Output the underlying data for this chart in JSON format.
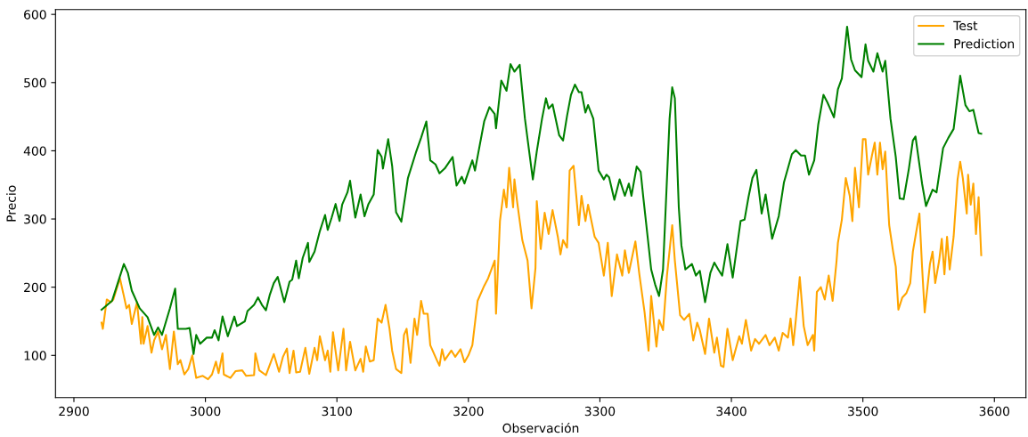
{
  "chart_data": {
    "type": "line",
    "xlabel": "Observación",
    "ylabel": "Precio",
    "xlim": [
      2886,
      3624
    ],
    "ylim": [
      38,
      607
    ],
    "xticks": [
      2900,
      3000,
      3100,
      3200,
      3300,
      3400,
      3500,
      3600
    ],
    "yticks": [
      100,
      200,
      300,
      400,
      500,
      600
    ],
    "grid": false,
    "legend": "top right",
    "line_style": "solid",
    "marker": "none",
    "series": [
      {
        "name": "Test",
        "color": "#ffa500",
        "x": [
          2921,
          2922,
          2923,
          2925,
          2928,
          2930,
          2935,
          2938,
          2940,
          2942,
          2944,
          2948,
          2951,
          2952,
          2953,
          2956,
          2959,
          2961,
          2964,
          2967,
          2970,
          2973,
          2976,
          2979,
          2981,
          2984,
          2987,
          2990,
          2993,
          2998,
          3002,
          3005,
          3008,
          3010,
          3013,
          3014,
          3019,
          3023,
          3028,
          3031,
          3037,
          3038,
          3041,
          3046,
          3052,
          3056,
          3059,
          3062,
          3064,
          3067,
          3069,
          3072,
          3076,
          3079,
          3083,
          3085,
          3087,
          3091,
          3093,
          3095,
          3097,
          3101,
          3105,
          3107,
          3110,
          3114,
          3118,
          3120,
          3122,
          3125,
          3128,
          3131,
          3134,
          3137,
          3140,
          3142,
          3145,
          3149,
          3151,
          3153,
          3156,
          3159,
          3161,
          3164,
          3166,
          3169,
          3171,
          3176,
          3178,
          3180,
          3182,
          3187,
          3190,
          3194,
          3197,
          3200,
          3203,
          3207,
          3212,
          3215,
          3220,
          3221,
          3224,
          3227,
          3229,
          3231,
          3234,
          3235,
          3237,
          3241,
          3245,
          3248,
          3251,
          3252,
          3255,
          3258,
          3261,
          3264,
          3268,
          3270,
          3272,
          3275,
          3277,
          3280,
          3284,
          3286,
          3289,
          3291,
          3296,
          3299,
          3303,
          3306,
          3309,
          3313,
          3317,
          3319,
          3322,
          3327,
          3330,
          3334,
          3337,
          3339,
          3343,
          3345,
          3348,
          3351,
          3355,
          3357,
          3361,
          3364,
          3368,
          3371,
          3374,
          3376,
          3380,
          3383,
          3387,
          3389,
          3392,
          3394,
          3397,
          3401,
          3406,
          3408,
          3411,
          3415,
          3418,
          3421,
          3426,
          3429,
          3433,
          3436,
          3439,
          3443,
          3445,
          3447,
          3449,
          3452,
          3455,
          3458,
          3462,
          3463,
          3465,
          3468,
          3471,
          3474,
          3477,
          3480,
          3481,
          3484,
          3487,
          3490,
          3492,
          3494,
          3497,
          3500,
          3502,
          3504,
          3507,
          3509,
          3511,
          3513,
          3515,
          3517,
          3520,
          3523,
          3525,
          3527,
          3530,
          3533,
          3536,
          3538,
          3541,
          3543,
          3545,
          3547,
          3551,
          3553,
          3555,
          3558,
          3560,
          3562,
          3564,
          3566,
          3569,
          3572,
          3574,
          3576,
          3579,
          3580,
          3582,
          3584,
          3586,
          3588,
          3590
        ],
        "values": [
          148,
          139,
          153,
          182,
          178,
          182,
          213,
          187,
          169,
          174,
          146,
          178,
          117,
          156,
          117,
          143,
          104,
          122,
          135,
          109,
          130,
          80,
          135,
          87,
          93,
          72,
          80,
          100,
          67,
          70,
          65,
          72,
          91,
          74,
          103,
          72,
          67,
          77,
          78,
          70,
          71,
          103,
          78,
          71,
          102,
          76,
          98,
          110,
          74,
          107,
          75,
          76,
          111,
          73,
          111,
          93,
          128,
          93,
          107,
          76,
          134,
          78,
          139,
          78,
          120,
          78,
          95,
          76,
          113,
          91,
          93,
          154,
          148,
          174,
          139,
          107,
          80,
          74,
          130,
          139,
          89,
          154,
          130,
          180,
          161,
          161,
          115,
          93,
          85,
          109,
          93,
          107,
          98,
          109,
          90,
          100,
          115,
          180,
          202,
          213,
          239,
          161,
          297,
          343,
          317,
          375,
          317,
          358,
          326,
          269,
          239,
          169,
          228,
          326,
          256,
          309,
          278,
          313,
          274,
          248,
          269,
          258,
          371,
          378,
          291,
          334,
          297,
          321,
          274,
          265,
          217,
          265,
          187,
          248,
          217,
          254,
          221,
          267,
          219,
          163,
          107,
          187,
          113,
          152,
          137,
          217,
          291,
          239,
          159,
          152,
          161,
          122,
          148,
          137,
          102,
          154,
          104,
          126,
          85,
          83,
          139,
          93,
          128,
          117,
          152,
          107,
          124,
          117,
          130,
          115,
          126,
          107,
          133,
          126,
          154,
          115,
          152,
          215,
          143,
          115,
          130,
          107,
          193,
          200,
          182,
          217,
          180,
          239,
          265,
          299,
          360,
          334,
          297,
          375,
          317,
          417,
          417,
          365,
          394,
          412,
          365,
          412,
          373,
          399,
          291,
          252,
          230,
          167,
          185,
          191,
          206,
          252,
          286,
          308,
          230,
          163,
          234,
          252,
          206,
          239,
          271,
          219,
          274,
          226,
          274,
          358,
          384,
          360,
          308,
          365,
          321,
          352,
          278,
          332,
          247
        ]
      },
      {
        "name": "Prediction",
        "color": "#008000",
        "x": [
          2921,
          2929,
          2933,
          2938,
          2941,
          2944,
          2950,
          2956,
          2961,
          2964,
          2967,
          2973,
          2977,
          2979,
          2985,
          2988,
          2991,
          2993,
          2996,
          3001,
          3005,
          3007,
          3010,
          3013,
          3017,
          3022,
          3024,
          3030,
          3032,
          3037,
          3040,
          3043,
          3046,
          3049,
          3052,
          3055,
          3060,
          3064,
          3066,
          3069,
          3071,
          3074,
          3078,
          3079,
          3083,
          3087,
          3091,
          3093,
          3096,
          3099,
          3102,
          3104,
          3108,
          3110,
          3114,
          3118,
          3121,
          3124,
          3128,
          3131,
          3134,
          3135,
          3139,
          3142,
          3145,
          3149,
          3154,
          3160,
          3164,
          3168,
          3171,
          3175,
          3178,
          3182,
          3188,
          3191,
          3195,
          3197,
          3203,
          3205,
          3212,
          3216,
          3220,
          3221,
          3225,
          3229,
          3232,
          3235,
          3239,
          3243,
          3245,
          3249,
          3252,
          3256,
          3259,
          3261,
          3264,
          3269,
          3272,
          3275,
          3278,
          3281,
          3284,
          3286,
          3289,
          3291,
          3295,
          3299,
          3303,
          3305,
          3307,
          3311,
          3315,
          3319,
          3322,
          3324,
          3328,
          3331,
          3333,
          3339,
          3342,
          3345,
          3348,
          3353,
          3355,
          3357,
          3360,
          3362,
          3365,
          3370,
          3373,
          3376,
          3380,
          3384,
          3387,
          3390,
          3393,
          3397,
          3401,
          3407,
          3410,
          3413,
          3416,
          3419,
          3423,
          3426,
          3431,
          3436,
          3440,
          3446,
          3449,
          3453,
          3456,
          3459,
          3463,
          3466,
          3470,
          3473,
          3478,
          3481,
          3484,
          3488,
          3491,
          3494,
          3499,
          3502,
          3504,
          3508,
          3511,
          3515,
          3517,
          3521,
          3525,
          3528,
          3531,
          3535,
          3538,
          3540,
          3545,
          3548,
          3553,
          3556,
          3559,
          3561,
          3565,
          3569,
          3574,
          3578,
          3581,
          3584,
          3588,
          3590
        ],
        "values": [
          167,
          180,
          204,
          234,
          221,
          195,
          169,
          156,
          130,
          141,
          130,
          169,
          198,
          139,
          139,
          140,
          102,
          130,
          117,
          126,
          126,
          137,
          122,
          157,
          128,
          157,
          143,
          150,
          165,
          174,
          185,
          174,
          166,
          189,
          206,
          215,
          178,
          208,
          211,
          239,
          213,
          243,
          265,
          237,
          252,
          282,
          306,
          284,
          302,
          322,
          297,
          321,
          339,
          356,
          302,
          336,
          304,
          322,
          336,
          401,
          391,
          374,
          417,
          378,
          310,
          296,
          360,
          397,
          419,
          443,
          386,
          380,
          367,
          374,
          391,
          349,
          362,
          352,
          386,
          371,
          443,
          464,
          454,
          433,
          503,
          488,
          527,
          516,
          526,
          447,
          417,
          358,
          399,
          447,
          477,
          462,
          468,
          423,
          415,
          451,
          482,
          497,
          486,
          486,
          456,
          467,
          447,
          371,
          358,
          365,
          361,
          328,
          358,
          334,
          352,
          334,
          377,
          369,
          332,
          226,
          204,
          187,
          226,
          447,
          493,
          477,
          317,
          261,
          226,
          234,
          217,
          224,
          178,
          221,
          236,
          226,
          217,
          263,
          214,
          297,
          299,
          332,
          360,
          372,
          308,
          336,
          271,
          304,
          354,
          395,
          401,
          393,
          393,
          365,
          386,
          438,
          482,
          471,
          449,
          490,
          506,
          582,
          534,
          518,
          508,
          556,
          532,
          516,
          543,
          516,
          532,
          447,
          391,
          330,
          329,
          374,
          415,
          421,
          352,
          319,
          343,
          339,
          378,
          404,
          419,
          432,
          510,
          467,
          458,
          460,
          426,
          425
        ]
      }
    ]
  }
}
